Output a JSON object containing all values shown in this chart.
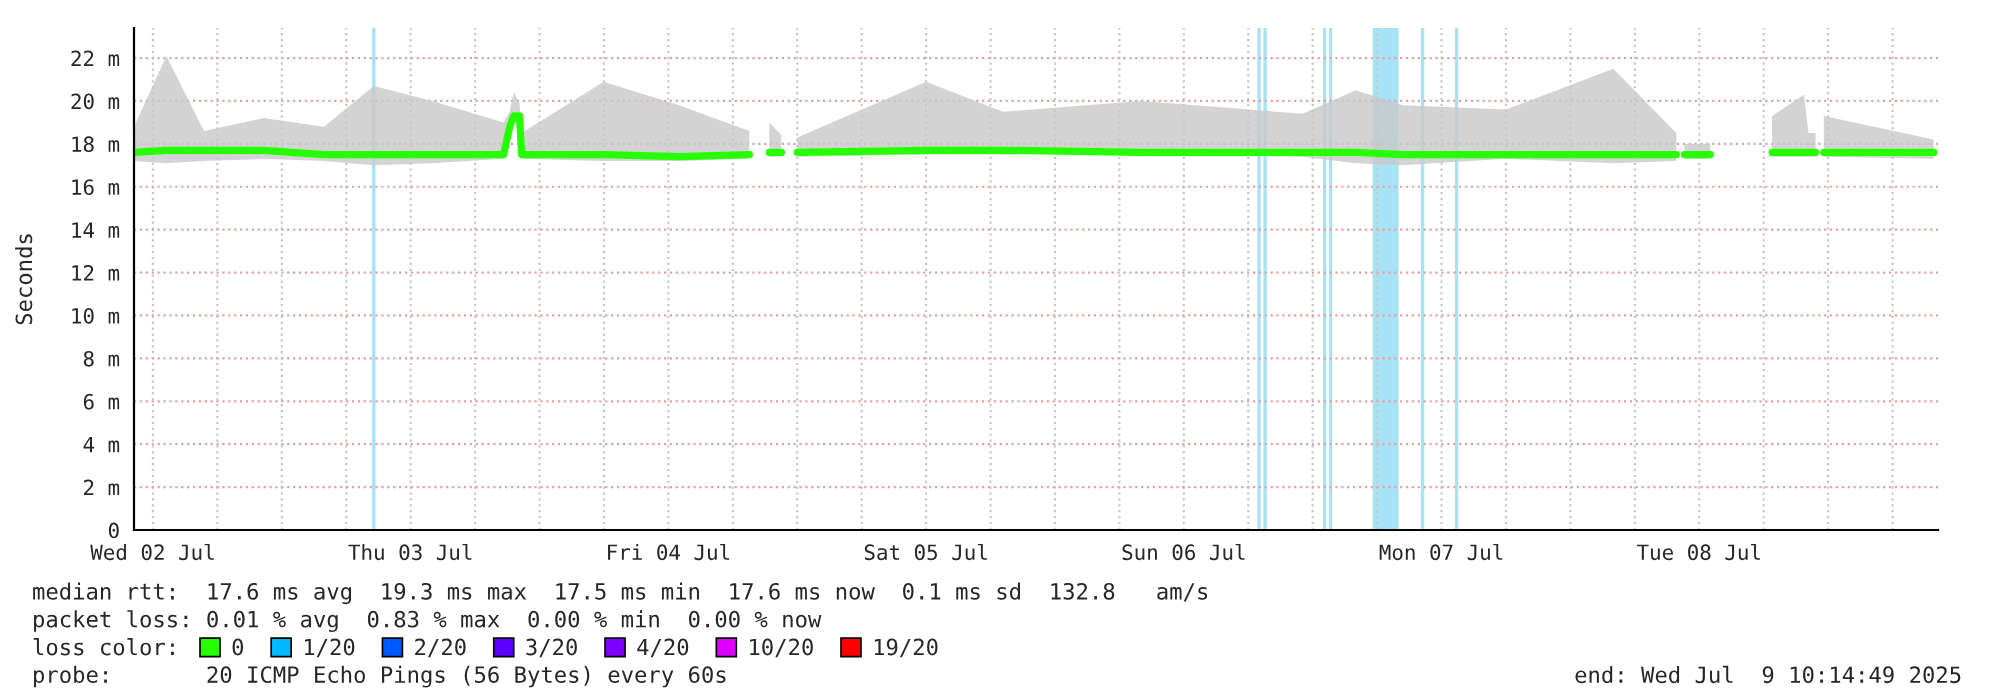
{
  "chart_data": {
    "type": "line",
    "ylabel": "Seconds",
    "legend": "bottom",
    "legend_title": "loss color:",
    "grid": true,
    "xlim": [
      "2025-07-02T10:14",
      "2025-07-09T10:14"
    ],
    "xticks": [
      {
        "value": "2025-07-02T12:00",
        "label": "Wed 02 Jul"
      },
      {
        "value": "2025-07-02T18:00",
        "label": null
      },
      {
        "value": "2025-07-03T00:00",
        "label": null
      },
      {
        "value": "2025-07-03T06:00",
        "label": null
      },
      {
        "value": "2025-07-03T12:00",
        "label": "Thu 03 Jul"
      },
      {
        "value": "2025-07-03T18:00",
        "label": null
      },
      {
        "value": "2025-07-04T00:00",
        "label": null
      },
      {
        "value": "2025-07-04T06:00",
        "label": null
      },
      {
        "value": "2025-07-04T12:00",
        "label": "Fri 04 Jul"
      },
      {
        "value": "2025-07-04T18:00",
        "label": null
      },
      {
        "value": "2025-07-05T00:00",
        "label": null
      },
      {
        "value": "2025-07-05T06:00",
        "label": null
      },
      {
        "value": "2025-07-05T12:00",
        "label": "Sat 05 Jul"
      },
      {
        "value": "2025-07-05T18:00",
        "label": null
      },
      {
        "value": "2025-07-06T00:00",
        "label": null
      },
      {
        "value": "2025-07-06T06:00",
        "label": null
      },
      {
        "value": "2025-07-06T12:00",
        "label": "Sun 06 Jul"
      },
      {
        "value": "2025-07-06T18:00",
        "label": null
      },
      {
        "value": "2025-07-07T00:00",
        "label": null
      },
      {
        "value": "2025-07-07T06:00",
        "label": null
      },
      {
        "value": "2025-07-07T12:00",
        "label": "Mon 07 Jul"
      },
      {
        "value": "2025-07-07T18:00",
        "label": null
      },
      {
        "value": "2025-07-08T00:00",
        "label": null
      },
      {
        "value": "2025-07-08T06:00",
        "label": null
      },
      {
        "value": "2025-07-08T12:00",
        "label": "Tue 08 Jul"
      },
      {
        "value": "2025-07-08T18:00",
        "label": null
      },
      {
        "value": "2025-07-09T00:00",
        "label": null
      },
      {
        "value": "2025-07-09T06:00",
        "label": null
      }
    ],
    "ylim": [
      0,
      23.4
    ],
    "yticks": [
      0,
      {
        "value": 2,
        "label": "2 m"
      },
      {
        "value": 4,
        "label": "4 m"
      },
      {
        "value": 6,
        "label": "6 m"
      },
      {
        "value": 8,
        "label": "8 m"
      },
      {
        "value": 10,
        "label": "10 m"
      },
      {
        "value": 12,
        "label": "12 m"
      },
      {
        "value": 14,
        "label": "14 m"
      },
      {
        "value": 16,
        "label": "16 m"
      },
      {
        "value": 18,
        "label": "18 m"
      },
      {
        "value": 20,
        "label": "20 m"
      },
      {
        "value": 22,
        "label": "22 m"
      }
    ],
    "marker": "none",
    "line_style": "solid",
    "series": [
      {
        "name": "0",
        "color": "#26ff00",
        "x": [
          "2025-07-02T10:14",
          "2025-07-02T13:15",
          "2025-07-02T16:45",
          "2025-07-02T22:20",
          "2025-07-03T03:55",
          "2025-07-03T08:34",
          "2025-07-03T14:00",
          "2025-07-03T20:39",
          "2025-07-03T21:13",
          "2025-07-03T21:35",
          "2025-07-03T22:08",
          "2025-07-03T22:20",
          "2025-07-04T05:58",
          "2025-07-04T13:00",
          "2025-07-04T19:32",
          "2025-07-04T20:30",
          "2025-07-04T21:24",
          "2025-07-04T22:31",
          "2025-07-04T23:15",
          "2025-07-05T00:00",
          "2025-07-05T12:00",
          "2025-07-05T19:10",
          "2025-07-06T08:00",
          "2025-07-06T23:04",
          "2025-07-07T04:00",
          "2025-07-07T08:24",
          "2025-07-07T18:00",
          "2025-07-08T04:00",
          "2025-07-08T09:52",
          "2025-07-08T10:15",
          "2025-07-08T10:37",
          "2025-07-08T13:02",
          "2025-07-08T16:00",
          "2025-07-08T18:47",
          "2025-07-08T21:46",
          "2025-07-08T22:10",
          "2025-07-08T22:50",
          "2025-07-08T23:10",
          "2025-07-08T23:36",
          "2025-07-09T09:50"
        ],
        "values": [
          17.6,
          17.7,
          17.7,
          17.7,
          17.5,
          17.5,
          17.5,
          17.5,
          18.8,
          19.3,
          19.3,
          17.5,
          17.5,
          17.4,
          17.5,
          null,
          17.6,
          17.6,
          null,
          17.6,
          17.7,
          17.7,
          17.6,
          17.6,
          17.6,
          17.5,
          17.5,
          17.5,
          17.5,
          null,
          17.5,
          17.5,
          null,
          17.6,
          17.6,
          17.6,
          17.6,
          null,
          17.6,
          17.6
        ],
        "lower": [
          17.2,
          17.1,
          17.2,
          17.3,
          17.2,
          17.0,
          17.1,
          17.3,
          18.6,
          19.0,
          19.0,
          17.3,
          17.2,
          17.2,
          17.3,
          null,
          17.4,
          17.4,
          null,
          17.4,
          17.5,
          17.5,
          17.5,
          17.4,
          17.1,
          17.0,
          17.3,
          17.1,
          17.2,
          null,
          17.3,
          17.3,
          null,
          17.4,
          17.4,
          17.4,
          17.4,
          null,
          17.4,
          17.3
        ],
        "upper": [
          18.8,
          22.1,
          18.6,
          19.2,
          18.8,
          20.7,
          20.0,
          19.0,
          19.5,
          20.4,
          19.9,
          18.5,
          20.9,
          19.8,
          18.6,
          null,
          19.0,
          18.4,
          null,
          18.3,
          20.9,
          19.5,
          20.0,
          19.4,
          20.5,
          19.8,
          19.6,
          21.5,
          18.5,
          null,
          18.0,
          18.0,
          null,
          19.3,
          20.3,
          18.5,
          18.5,
          null,
          19.3,
          18.2
        ]
      },
      {
        "name": "1/20",
        "color": "#00b8ff"
      },
      {
        "name": "2/20",
        "color": "#0059ff"
      },
      {
        "name": "3/20",
        "color": "#5e00ff"
      },
      {
        "name": "4/20",
        "color": "#7e00ff"
      },
      {
        "name": "10/20",
        "color": "#dd00ff"
      },
      {
        "name": "19/20",
        "color": "#ff0000"
      }
    ],
    "bands": [
      {
        "axis": "x",
        "from": "2025-07-07T05:35",
        "to": "2025-07-07T08:00",
        "color": "#a6e3f7"
      }
    ],
    "ref_lines": [
      {
        "axis": "x",
        "value": "2025-07-03T08:34",
        "color": "#a6e3f7"
      },
      {
        "axis": "x",
        "value": "2025-07-06T19:00",
        "color": "#a6e3f7"
      },
      {
        "axis": "x",
        "value": "2025-07-06T19:34",
        "color": "#a6e3f7"
      },
      {
        "axis": "x",
        "value": "2025-07-07T01:07",
        "color": "#a6e3f7"
      },
      {
        "axis": "x",
        "value": "2025-07-07T01:40",
        "color": "#a6e3f7"
      },
      {
        "axis": "x",
        "value": "2025-07-07T10:14",
        "color": "#a6e3f7"
      },
      {
        "axis": "x",
        "value": "2025-07-07T13:24",
        "color": "#a6e3f7"
      }
    ],
    "annotations": [
      "median rtt:  17.6 ms avg  19.3 ms max  17.5 ms min  17.6 ms now  0.1 ms sd  132.8   am/s",
      "packet loss: 0.01 % avg  0.83 % max  0.00 % min  0.00 % now",
      "probe:       20 ICMP Echo Pings (56 Bytes) every 60s",
      "end: Wed Jul  9 10:14:49 2025"
    ]
  }
}
